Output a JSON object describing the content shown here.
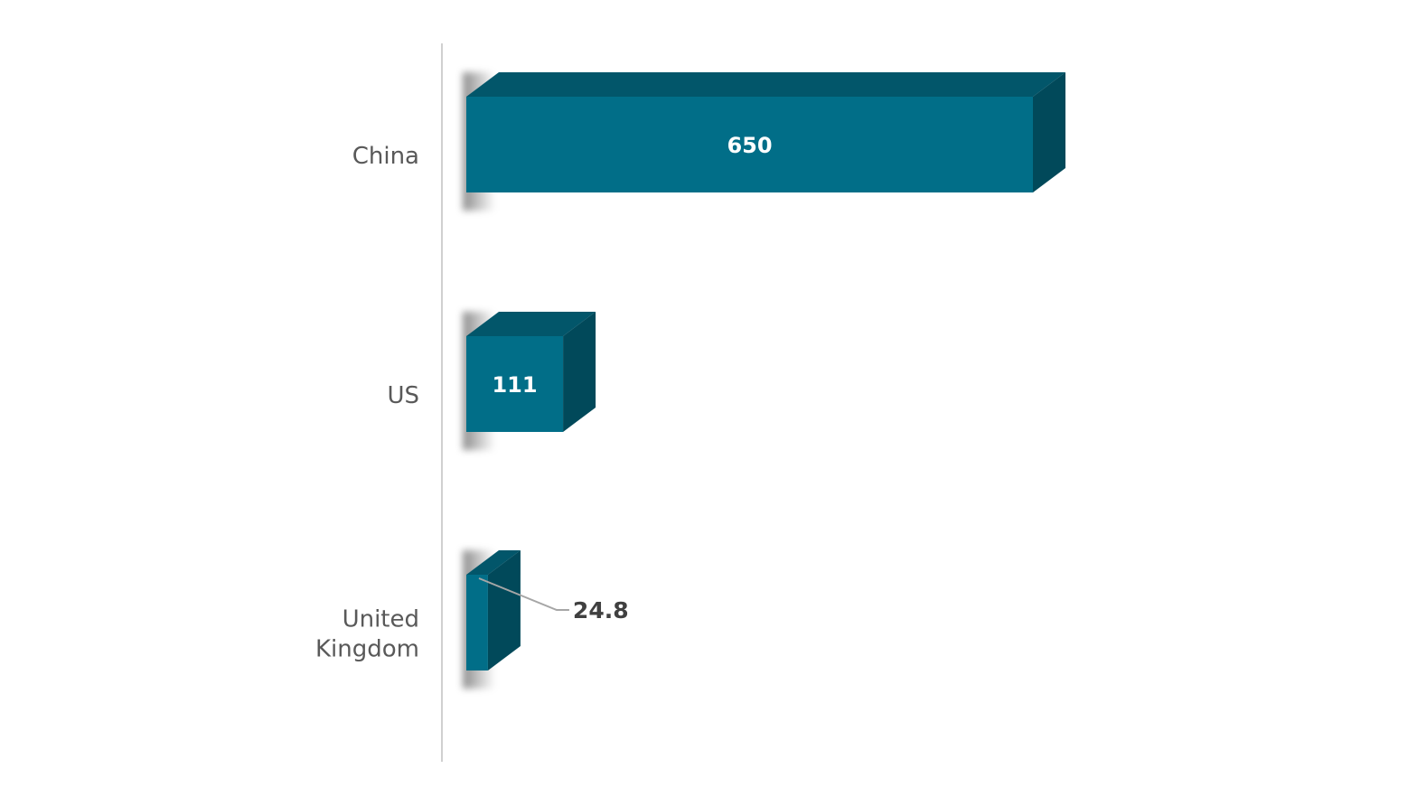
{
  "chart_data": {
    "type": "bar",
    "orientation": "horizontal",
    "style": "3d",
    "categories": [
      "China",
      "US",
      "United Kingdom"
    ],
    "category_lines": [
      [
        "China"
      ],
      [
        "US"
      ],
      [
        "United",
        "Kingdom"
      ]
    ],
    "values": [
      650,
      111,
      24.8
    ],
    "data_labels": [
      "650",
      "111",
      "24.8"
    ],
    "title": "",
    "xlabel": "",
    "ylabel": "",
    "grid": false,
    "legend": "none",
    "colors": {
      "front": "#016E88",
      "top": "#02566A",
      "side": "#01495A",
      "axis": "#D0D0D0",
      "label": "#595959",
      "data_label_outside": "#404040"
    }
  }
}
